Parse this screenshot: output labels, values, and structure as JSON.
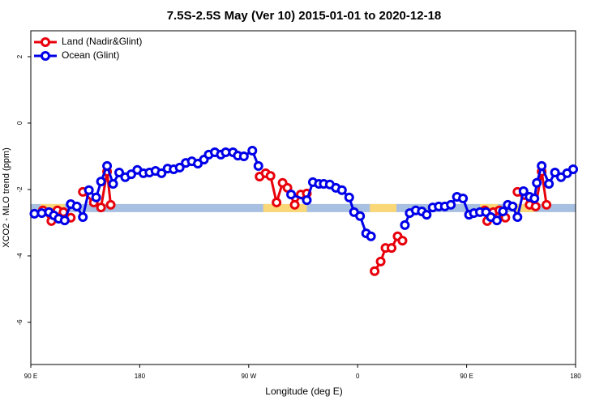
{
  "chart_data": {
    "type": "line",
    "title": "7.5S-2.5S May (Ver 10)   2015-01-01 to 2020-12-18",
    "x_label": "Longitude (deg E)",
    "y_label": "XCO2 - MLO trend (ppm)",
    "xlim": [
      90,
      540
    ],
    "xticks": [
      {
        "value": 90,
        "label": "90 E"
      },
      180,
      {
        "value": 270,
        "label": "90 W"
      },
      {
        "value": 360,
        "label": "0"
      },
      {
        "value": 450,
        "label": "90 E"
      },
      {
        "value": 540,
        "label": "180"
      }
    ],
    "ylim": [
      -7.27,
      2.78
    ],
    "yticks": [
      -6,
      -4,
      -2,
      0,
      2
    ],
    "legend": "top-left",
    "band": {
      "y": -2.56,
      "color": "#a7bfe0",
      "highlight_color": "#fbd877",
      "highlights": [
        [
          98,
          118
        ],
        [
          282,
          318
        ],
        [
          370,
          392
        ],
        [
          461,
          476
        ],
        [
          490,
          506
        ]
      ]
    },
    "series": [
      {
        "name": "Land (Nadir&Glint)",
        "color": "#e8000b",
        "x": [
          100,
          107,
          112,
          117,
          123,
          125,
          133,
          142,
          148,
          153,
          156,
          200,
          279,
          284,
          288,
          293,
          298,
          302,
          308,
          313,
          318,
          340,
          374,
          379,
          383,
          388,
          393,
          397,
          430,
          465,
          467,
          472,
          477,
          482,
          485,
          492,
          498,
          502,
          507,
          512,
          516
        ],
        "values": [
          -2.63,
          -2.95,
          -2.63,
          -2.68,
          -2.85,
          null,
          -2.07,
          -2.39,
          -2.54,
          -1.46,
          -2.46,
          null,
          -1.61,
          -1.51,
          -1.59,
          -2.39,
          -1.8,
          -1.95,
          -2.46,
          -2.15,
          -2.12,
          null,
          -4.46,
          -4.17,
          -3.76,
          -3.76,
          -3.41,
          -3.54,
          null,
          -2.63,
          -2.95,
          -2.68,
          -2.63,
          -2.85,
          null,
          -2.07,
          -2.17,
          -2.46,
          -2.51,
          -1.46,
          -2.46
        ]
      },
      {
        "name": "Ocean (Glint)",
        "color": "#0000e8",
        "x": [
          93,
          99,
          105,
          109,
          113,
          118,
          123,
          128,
          133,
          138,
          144,
          148,
          153,
          158,
          163,
          168,
          173,
          178,
          183,
          188,
          193,
          198,
          203,
          208,
          213,
          218,
          223,
          228,
          233,
          237,
          242,
          247,
          251,
          257,
          261,
          266,
          273,
          278,
          290,
          305,
          318,
          323,
          328,
          332,
          337,
          342,
          347,
          353,
          357,
          362,
          367,
          371,
          385,
          399,
          403,
          408,
          413,
          417,
          422,
          427,
          432,
          437,
          442,
          447,
          452,
          456,
          461,
          466,
          470,
          475,
          480,
          484,
          488,
          492,
          497,
          502,
          506,
          508,
          512,
          518,
          523,
          528,
          533,
          538
        ],
        "values": [
          -2.73,
          -2.71,
          -2.68,
          -2.78,
          -2.88,
          -2.93,
          -2.44,
          -2.51,
          -2.83,
          -2.02,
          -2.24,
          -1.76,
          -1.29,
          -1.83,
          -1.49,
          -1.63,
          -1.54,
          -1.41,
          -1.51,
          -1.49,
          -1.44,
          -1.51,
          -1.37,
          -1.39,
          -1.34,
          -1.2,
          -1.15,
          -1.22,
          -1.1,
          -0.95,
          -0.88,
          -0.95,
          -0.88,
          -0.88,
          -0.98,
          -1.0,
          -0.83,
          -1.29,
          null,
          -2.15,
          -2.32,
          -1.78,
          -1.83,
          -1.83,
          -1.85,
          -1.95,
          -2.02,
          -2.24,
          -2.68,
          -2.8,
          -3.32,
          -3.41,
          null,
          -3.07,
          -2.71,
          -2.63,
          -2.66,
          -2.76,
          -2.54,
          -2.51,
          -2.51,
          -2.46,
          -2.22,
          -2.27,
          -2.76,
          -2.71,
          -2.68,
          -2.68,
          -2.83,
          -2.93,
          -2.66,
          -2.46,
          -2.51,
          -2.83,
          -2.05,
          -2.22,
          -2.27,
          -1.8,
          -1.29,
          -1.83,
          -1.49,
          -1.63,
          -1.51,
          -1.39
        ]
      }
    ]
  }
}
